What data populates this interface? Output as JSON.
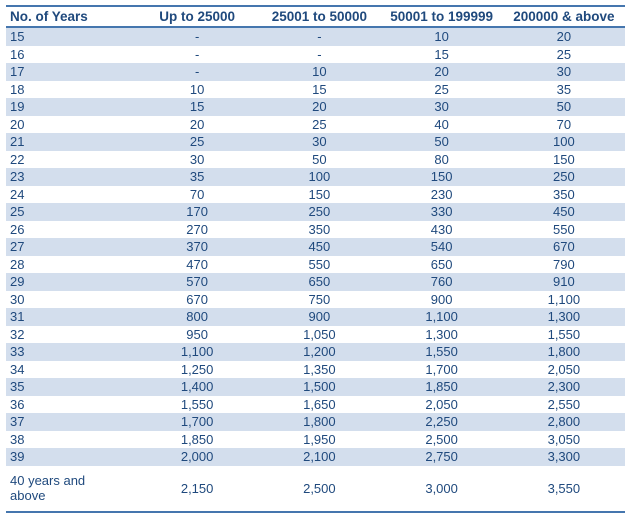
{
  "table": {
    "type": "table",
    "columns": [
      "No. of Years",
      "Up to 25000",
      "25001 to 50000",
      "50001 to 199999",
      "200000 & above"
    ],
    "rows": [
      [
        "15",
        "-",
        "-",
        "10",
        "20"
      ],
      [
        "16",
        "-",
        "-",
        "15",
        "25"
      ],
      [
        "17",
        "-",
        "10",
        "20",
        "30"
      ],
      [
        "18",
        "10",
        "15",
        "25",
        "35"
      ],
      [
        "19",
        "15",
        "20",
        "30",
        "50"
      ],
      [
        "20",
        "20",
        "25",
        "40",
        "70"
      ],
      [
        "21",
        "25",
        "30",
        "50",
        "100"
      ],
      [
        "22",
        "30",
        "50",
        "80",
        "150"
      ],
      [
        "23",
        "35",
        "100",
        "150",
        "250"
      ],
      [
        "24",
        "70",
        "150",
        "230",
        "350"
      ],
      [
        "25",
        "170",
        "250",
        "330",
        "450"
      ],
      [
        "26",
        "270",
        "350",
        "430",
        "550"
      ],
      [
        "27",
        "370",
        "450",
        "540",
        "670"
      ],
      [
        "28",
        "470",
        "550",
        "650",
        "790"
      ],
      [
        "29",
        "570",
        "650",
        "760",
        "910"
      ],
      [
        "30",
        "670",
        "750",
        "900",
        "1,100"
      ],
      [
        "31",
        "800",
        "900",
        "1,100",
        "1,300"
      ],
      [
        "32",
        "950",
        "1,050",
        "1,300",
        "1,550"
      ],
      [
        "33",
        "1,100",
        "1,200",
        "1,550",
        "1,800"
      ],
      [
        "34",
        "1,250",
        "1,350",
        "1,700",
        "2,050"
      ],
      [
        "35",
        "1,400",
        "1,500",
        "1,850",
        "2,300"
      ],
      [
        "36",
        "1,550",
        "1,650",
        "2,050",
        "2,550"
      ],
      [
        "37",
        "1,700",
        "1,800",
        "2,250",
        "2,800"
      ],
      [
        "38",
        "1,850",
        "1,950",
        "2,500",
        "3,050"
      ],
      [
        "39",
        "2,000",
        "2,100",
        "2,750",
        "3,300"
      ],
      [
        "40 years and above",
        "2,150",
        "2,500",
        "3,000",
        "3,550"
      ]
    ]
  },
  "colors": {
    "row_band": "#D3DEED",
    "border": "#4576AE",
    "header_text": "#1F497D",
    "body_text": "#1F497D",
    "background": "#FFFFFF"
  }
}
